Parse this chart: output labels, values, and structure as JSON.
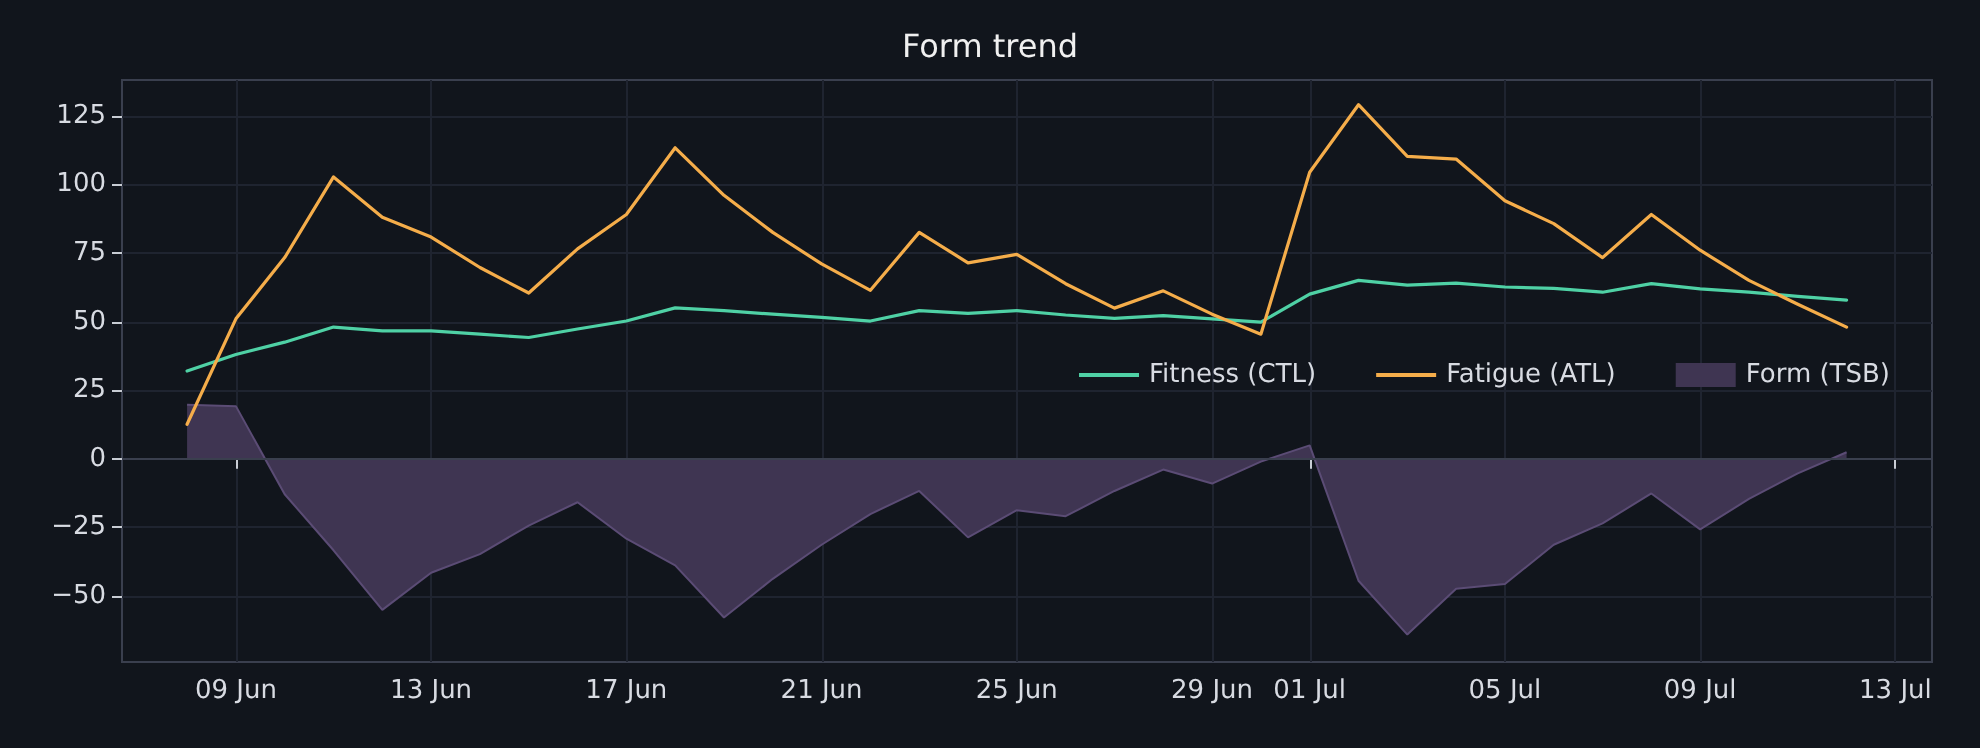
{
  "chart_data": {
    "type": "line",
    "title": "Form trend",
    "x": [
      "--06-08",
      "--06-09",
      "--06-10",
      "--06-11",
      "--06-12",
      "--06-13",
      "--06-14",
      "--06-15",
      "--06-16",
      "--06-17",
      "--06-18",
      "--06-19",
      "--06-20",
      "--06-21",
      "--06-22",
      "--06-23",
      "--06-24",
      "--06-25",
      "--06-26",
      "--06-27",
      "--06-28",
      "--06-29",
      "--06-30",
      "--07-01",
      "--07-02",
      "--07-03",
      "--07-04",
      "--07-05",
      "--07-06",
      "--07-07",
      "--07-08",
      "--07-09",
      "--07-10",
      "--07-11",
      "--07-12"
    ],
    "series": [
      {
        "name": "Fitness (CTL)",
        "color": "#4fd1a5",
        "values": [
          32,
          38,
          42.5,
          48,
          46.6,
          46.6,
          45.4,
          44.2,
          47.3,
          50.2,
          55,
          54,
          52.7,
          51.5,
          50.2,
          54,
          53,
          54,
          52.4,
          51.2,
          52.2,
          51,
          49.8,
          60,
          65,
          63.3,
          64,
          62.6,
          62.1,
          60.7,
          63.8,
          61.9,
          60.7,
          59.2,
          57.8
        ]
      },
      {
        "name": "Fatigue (ATL)",
        "color": "#f5ad4a",
        "values": [
          12.6,
          51,
          73.3,
          102.7,
          88,
          80.8,
          69.7,
          60.4,
          76.5,
          89,
          113.3,
          96,
          82.5,
          71,
          61.4,
          82.5,
          71.4,
          74.5,
          63.8,
          54.9,
          61.2,
          52.7,
          45.4,
          104.4,
          129,
          110.2,
          109.2,
          94,
          85.7,
          73.3,
          89,
          76,
          65,
          56.3,
          48
        ]
      },
      {
        "name": "Form (TSB)",
        "type": "area",
        "color": "#3f3552",
        "values": [
          19.7,
          19.2,
          -12.9,
          -33.3,
          -55,
          -41.5,
          -34.7,
          -24.3,
          -15.8,
          -29.1,
          -38.8,
          -57.8,
          -43.7,
          -31.3,
          -20.1,
          -11.7,
          -28.6,
          -18.7,
          -20.9,
          -11.7,
          -3.9,
          -9,
          -1,
          4.9,
          -44.4,
          -64,
          -47.3,
          -45.6,
          -31.3,
          -23.5,
          -12.6,
          -25.7,
          -14.6,
          -5.3,
          2.4
        ]
      }
    ],
    "xlim": [
      "--06-06T16:00",
      "--07-13T18:00"
    ],
    "xticks": [
      {
        "value": "--06-09",
        "label": "09 Jun"
      },
      {
        "value": "--06-13",
        "label": "13 Jun"
      },
      {
        "value": "--06-17",
        "label": "17 Jun"
      },
      {
        "value": "--06-21",
        "label": "21 Jun"
      },
      {
        "value": "--06-25",
        "label": "25 Jun"
      },
      {
        "value": "--06-29",
        "label": "29 Jun"
      },
      {
        "value": "--07-01",
        "label": "01 Jul"
      },
      {
        "value": "--07-05",
        "label": "05 Jul"
      },
      {
        "value": "--07-09",
        "label": "09 Jul"
      },
      {
        "value": "--07-13",
        "label": "13 Jul"
      }
    ],
    "ylim": [
      -74,
      138
    ],
    "yticks": [
      -50,
      -25,
      0,
      25,
      50,
      75,
      100,
      125
    ],
    "ref_lines": [
      {
        "axis": "y",
        "value": 0,
        "label": null,
        "color": "#3a3f4e"
      }
    ],
    "grid": true,
    "legend": "right",
    "line_style": "solid",
    "marker": "none"
  }
}
